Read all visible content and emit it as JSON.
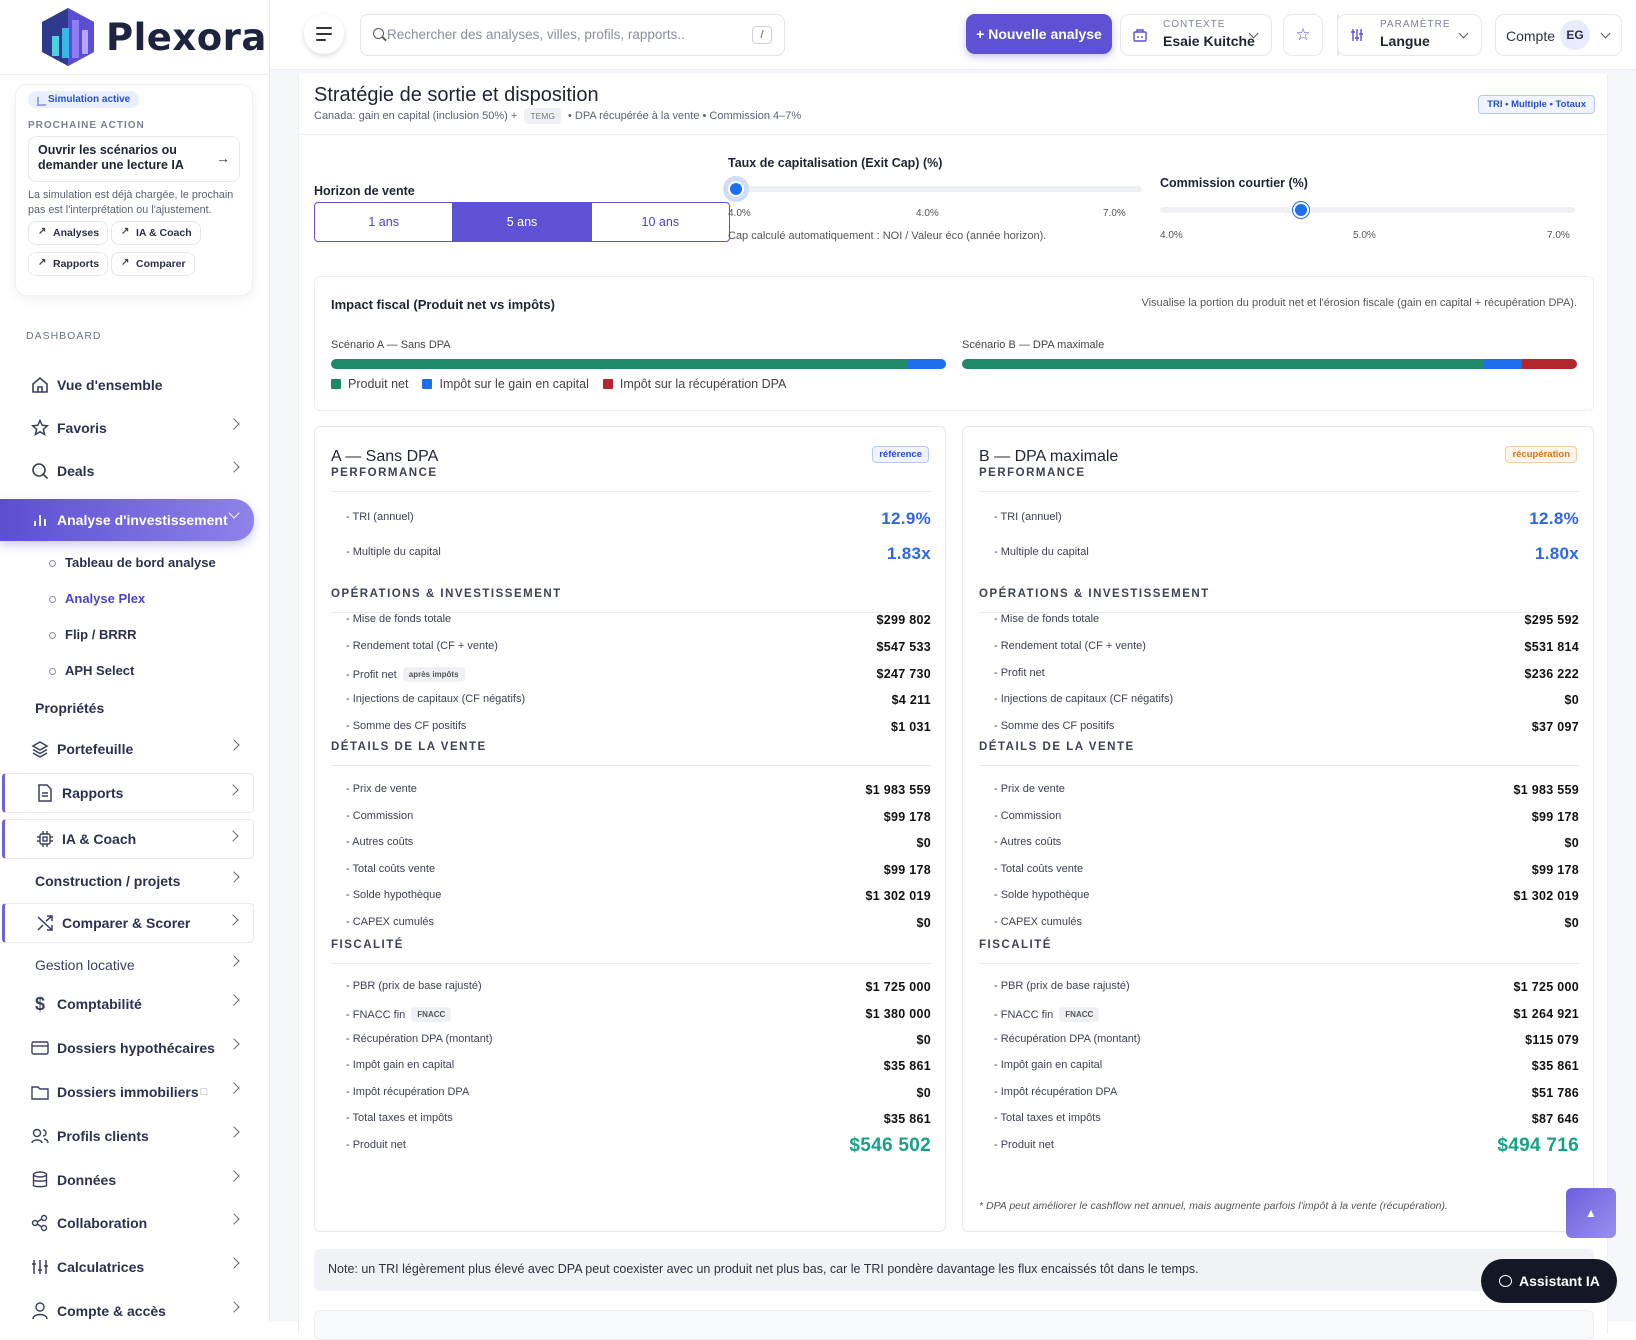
{
  "brand": {
    "name": "Plexora"
  },
  "sidebar": {
    "sim_badge": "Simulation active",
    "next_label": "PROCHAINE ACTION",
    "next_action": "Ouvrir les scénarios ou demander une lecture IA",
    "sim_text": "La simulation est déjà chargée, le prochain pas est l'interprétation ou l'ajustement.",
    "chips": [
      "Analyses",
      "IA & Coach",
      "Rapports",
      "Comparer"
    ],
    "section": "DASHBOARD",
    "items": {
      "overview": "Vue d'ensemble",
      "favorites": "Favoris",
      "deals": "Deals",
      "analysis": "Analyse d'investissement",
      "properties": "Propriétés",
      "portfolio": "Portefeuille",
      "reports": "Rapports",
      "ai": "IA & Coach",
      "construction": "Construction / projets",
      "compare": "Comparer & Scorer",
      "rental": "Gestion locative",
      "accounting": "Comptabilité",
      "mortgage": "Dossiers hypothécaires",
      "realestate": "Dossiers immobiliers",
      "clients": "Profils clients",
      "data": "Données",
      "collab": "Collaboration",
      "calc": "Calculatrices",
      "account": "Compte & accès"
    },
    "sub": [
      "Tableau de bord analyse",
      "Analyse Plex",
      "Flip / BRRR",
      "APH Select"
    ]
  },
  "topbar": {
    "search_placeholder": "Rechercher des analyses, villes, profils, rapports..",
    "search_key": "/",
    "new_button": "+ Nouvelle analyse",
    "context_label": "CONTEXTE",
    "context_value": "Esaie Kuitche",
    "param_label": "PARAMÈTRE",
    "param_value": "Langue",
    "account_label": "Compte",
    "avatar": "EG"
  },
  "page": {
    "title": "Stratégie de sortie et disposition",
    "subtitle_a": "Canada: gain en capital (inclusion 50%) +",
    "subtitle_tag": "TEMG",
    "subtitle_b": "• DPA récupérée à la vente • Commission 4–7%",
    "tag": "TRI • Multiple • Totaux",
    "horizon_label": "Horizon de vente",
    "horizons": [
      "1 ans",
      "5 ans",
      "10 ans"
    ],
    "horizon_selected": 1,
    "cap_label": "Taux de capitalisation (Exit Cap) (%)",
    "cap_ticks": [
      "4.0%",
      "4.0%",
      "7.0%"
    ],
    "cap_value_fraction": 0.0,
    "cap_note": "Cap calculé automatiquement : NOI / Valeur éco (année horizon).",
    "comm_label": "Commission courtier (%)",
    "comm_ticks": [
      "4.0%",
      "5.0%",
      "7.0%"
    ],
    "comm_value_fraction": 0.34,
    "fiscal_title": "Impact fiscal (Produit net vs impôts)",
    "fiscal_note": "Visualise la portion du produit net et l'érosion fiscale (gain en capital + récupération DPA).",
    "scenA_label": "Scénario A — Sans DPA",
    "scenB_label": "Scénario B — DPA maximale",
    "scenA_split": [
      546502,
      35861,
      0
    ],
    "scenB_split": [
      494716,
      35861,
      51786
    ],
    "legend": [
      "Produit net",
      "Impôt sur le gain en capital",
      "Impôt sur la récupération DPA"
    ],
    "colors": {
      "net": "#1f8a6a",
      "gain": "#1e6ef0",
      "dpa": "#b3262e"
    },
    "note": "Note: un TRI légèrement plus élevé avec DPA peut coexister avec un produit net plus bas, car le TRI pondère davantage les flux encaissés tôt dans le temps.",
    "assistant": "Assistant IA"
  },
  "sections": {
    "perf": "PERFORMANCE",
    "ops": "OPÉRATIONS & INVESTISSEMENT",
    "sale": "DÉTAILS DE LA VENTE",
    "tax": "FISCALITÉ"
  },
  "labels": {
    "tri": "- TRI (annuel)",
    "mult": "- Multiple du capital",
    "mise": "- Mise de fonds totale",
    "rend": "- Rendement total (CF + vente)",
    "profit": "- Profit net",
    "inj": "- Injections de capitaux (CF négatifs)",
    "somme": "- Somme des CF positifs",
    "prix": "- Prix de vente",
    "comm": "- Commission",
    "autres": "- Autres coûts",
    "total": "- Total coûts vente",
    "solde": "- Solde hypothèque",
    "capex": "- CAPEX cumulés",
    "pbr": "- PBR (prix de base rajusté)",
    "fnacc": "- FNACC fin",
    "recup": "- Récupération DPA (montant)",
    "igc": "- Impôt gain en capital",
    "irec": "- Impôt récupération DPA",
    "ttot": "- Total taxes et impôts",
    "net": "- Produit net",
    "apres": "après impôts",
    "fnacc_tag": "FNACC"
  },
  "cards": {
    "a": {
      "title": "A — Sans DPA",
      "badge": "référence",
      "tri": "12.9%",
      "mult": "1.83x",
      "mise": "$299 802",
      "rend": "$547 533",
      "profit": "$247 730",
      "inj": "$4 211",
      "somme": "$1 031",
      "prix": "$1 983 559",
      "comm": "$99 178",
      "autres": "$0",
      "total": "$99 178",
      "solde": "$1 302 019",
      "capex": "$0",
      "pbr": "$1 725 000",
      "fnacc": "$1 380 000",
      "recup": "$0",
      "igc": "$35 861",
      "irec": "$0",
      "ttot": "$35 861",
      "net": "$546 502"
    },
    "b": {
      "title": "B — DPA maximale",
      "badge": "récupération",
      "tri": "12.8%",
      "mult": "1.80x",
      "mise": "$295 592",
      "rend": "$531 814",
      "profit": "$236 222",
      "inj": "$0",
      "somme": "$37 097",
      "prix": "$1 983 559",
      "comm": "$99 178",
      "autres": "$0",
      "total": "$99 178",
      "solde": "$1 302 019",
      "capex": "$0",
      "pbr": "$1 725 000",
      "fnacc": "$1 264 921",
      "recup": "$115 079",
      "igc": "$35 861",
      "irec": "$51 786",
      "ttot": "$87 646",
      "net": "$494 716",
      "footnote": "* DPA peut améliorer le cashflow net annuel, mais augmente parfois l'impôt à la vente (récupération)."
    }
  }
}
